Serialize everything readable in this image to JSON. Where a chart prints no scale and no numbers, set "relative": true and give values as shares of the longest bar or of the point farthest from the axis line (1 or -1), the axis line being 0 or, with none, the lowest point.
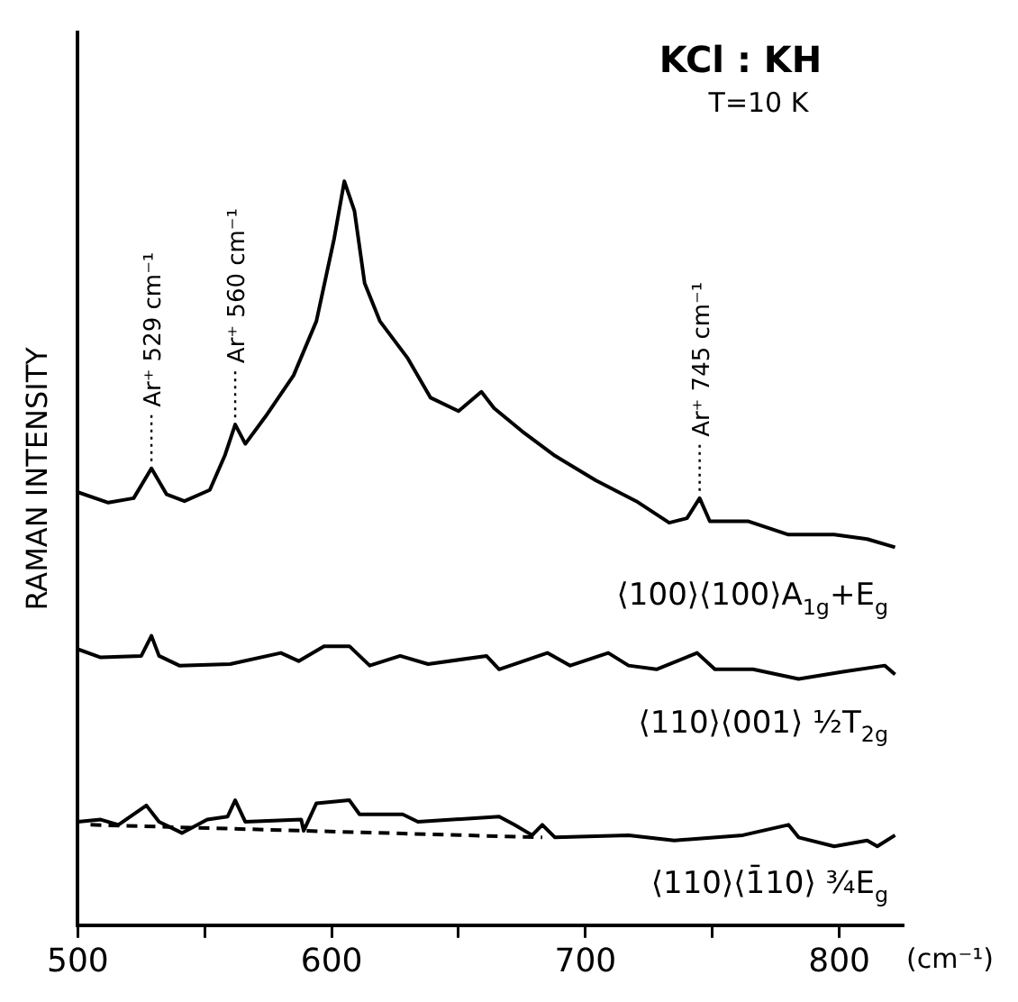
{
  "chart_data": {
    "type": "line",
    "title": "KCl : KH",
    "subtitle": "T=10 K",
    "xlabel": "(cm⁻¹)",
    "ylabel": "RAMAN INTENSITY",
    "relative": true,
    "legend": false,
    "grid": false,
    "marker": "none",
    "line_style": "solid",
    "xlim": [
      500,
      825
    ],
    "xticks": [
      500,
      {
        "value": 550,
        "label": null
      },
      600,
      {
        "value": 650,
        "label": null
      },
      700,
      {
        "value": 750,
        "label": null
      },
      800
    ],
    "annotations": [
      {
        "text": "Ar⁺ 529 cm⁻¹",
        "x": 529,
        "y": 0.614
      },
      {
        "text": "Ar⁺ 560 cm⁻¹",
        "x": 562,
        "y": 0.673
      },
      {
        "text": "Ar⁺ 745 cm⁻¹",
        "x": 745,
        "y": 0.574
      }
    ],
    "series": [
      {
        "name": "⟨100⟩⟨100⟩A$_{1g}$+E$_{g}$",
        "color": "#000000",
        "x": [
          500,
          512,
          522,
          529,
          535,
          542,
          552,
          558,
          562,
          566,
          574,
          585,
          594,
          601,
          605,
          609,
          613,
          619,
          630,
          639,
          650,
          659,
          664,
          675,
          688,
          704,
          720,
          733,
          740,
          745,
          749,
          764,
          780,
          798,
          811,
          822
        ],
        "values": [
          0.582,
          0.568,
          0.574,
          0.614,
          0.579,
          0.57,
          0.585,
          0.632,
          0.673,
          0.647,
          0.684,
          0.739,
          0.812,
          0.923,
          1.0,
          0.96,
          0.863,
          0.812,
          0.762,
          0.709,
          0.691,
          0.717,
          0.695,
          0.664,
          0.631,
          0.598,
          0.57,
          0.541,
          0.547,
          0.574,
          0.543,
          0.543,
          0.525,
          0.525,
          0.519,
          0.508
        ]
      },
      {
        "name": "⟨110⟩⟨001⟩ ½T$_{2g}$",
        "color": "#000000",
        "x": [
          500,
          509,
          525,
          529,
          532,
          540,
          560,
          580,
          587,
          597,
          607,
          615,
          627,
          638,
          661,
          666,
          685,
          694,
          709,
          717,
          728,
          744,
          751,
          766,
          784,
          802,
          818,
          822
        ],
        "values": [
          0.371,
          0.36,
          0.362,
          0.389,
          0.362,
          0.349,
          0.351,
          0.366,
          0.355,
          0.375,
          0.375,
          0.349,
          0.362,
          0.351,
          0.362,
          0.344,
          0.366,
          0.349,
          0.366,
          0.349,
          0.344,
          0.366,
          0.344,
          0.344,
          0.331,
          0.341,
          0.349,
          0.337
        ]
      },
      {
        "name": "⟨110⟩⟨1̄10⟩ ¾E$_{g}$",
        "color": "#000000",
        "x": [
          500,
          509,
          516,
          527,
          532,
          541,
          551,
          559,
          562,
          566,
          588,
          589,
          594,
          607,
          611,
          628,
          634,
          666,
          672,
          679,
          683,
          688,
          717,
          735,
          762,
          780,
          784,
          798,
          811,
          815,
          822
        ],
        "values": [
          0.139,
          0.142,
          0.135,
          0.161,
          0.139,
          0.124,
          0.142,
          0.146,
          0.168,
          0.139,
          0.142,
          0.127,
          0.164,
          0.168,
          0.149,
          0.149,
          0.139,
          0.146,
          0.135,
          0.121,
          0.135,
          0.118,
          0.121,
          0.114,
          0.121,
          0.135,
          0.118,
          0.106,
          0.114,
          0.106,
          0.121
        ]
      },
      {
        "color": "#000000",
        "line_style": "dashed",
        "x": [
          505,
          683
        ],
        "values": [
          0.135,
          0.118
        ]
      }
    ]
  }
}
